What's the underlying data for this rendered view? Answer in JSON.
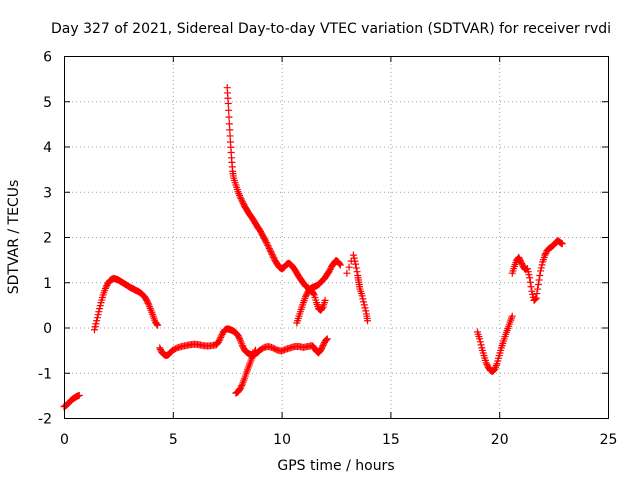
{
  "chart_data": {
    "type": "scatter",
    "title": "Day 327 of 2021, Sidereal Day-to-day VTEC variation (SDTVAR) for receiver rvdi",
    "xlabel": "GPS time / hours",
    "ylabel": "SDTVAR / TECUs",
    "xlim": [
      0,
      25
    ],
    "ylim": [
      -2,
      6
    ],
    "xticks": [
      "0",
      "5",
      "10",
      "15",
      "20",
      "25"
    ],
    "yticks": [
      "-2",
      "-1",
      "0",
      "1",
      "2",
      "3",
      "4",
      "5",
      "6"
    ],
    "grid": true,
    "marker": "plus",
    "color": "#ff0000",
    "series": [
      {
        "points": [
          [
            0.0,
            -1.75
          ],
          [
            0.1,
            -1.72
          ],
          [
            0.2,
            -1.68
          ],
          [
            0.3,
            -1.62
          ],
          [
            0.4,
            -1.58
          ],
          [
            0.5,
            -1.55
          ],
          [
            0.6,
            -1.52
          ],
          [
            0.7,
            -1.5
          ]
        ]
      },
      {
        "points": [
          [
            1.4,
            -0.05
          ],
          [
            1.5,
            0.15
          ],
          [
            1.6,
            0.35
          ],
          [
            1.7,
            0.55
          ],
          [
            1.8,
            0.72
          ],
          [
            1.9,
            0.86
          ],
          [
            2.0,
            0.96
          ],
          [
            2.1,
            1.03
          ],
          [
            2.2,
            1.07
          ],
          [
            2.3,
            1.08
          ],
          [
            2.4,
            1.07
          ],
          [
            2.5,
            1.05
          ],
          [
            2.6,
            1.02
          ],
          [
            2.7,
            0.99
          ],
          [
            2.8,
            0.96
          ],
          [
            2.9,
            0.93
          ],
          [
            3.0,
            0.9
          ],
          [
            3.1,
            0.87
          ],
          [
            3.2,
            0.85
          ],
          [
            3.3,
            0.82
          ],
          [
            3.4,
            0.8
          ],
          [
            3.5,
            0.77
          ],
          [
            3.6,
            0.73
          ],
          [
            3.7,
            0.68
          ],
          [
            3.8,
            0.6
          ],
          [
            3.9,
            0.5
          ],
          [
            4.0,
            0.38
          ],
          [
            4.1,
            0.25
          ],
          [
            4.2,
            0.12
          ],
          [
            4.3,
            0.05
          ]
        ]
      },
      {
        "points": [
          [
            4.4,
            -0.45
          ],
          [
            4.5,
            -0.55
          ],
          [
            4.6,
            -0.6
          ],
          [
            4.7,
            -0.62
          ],
          [
            4.8,
            -0.6
          ],
          [
            4.9,
            -0.55
          ],
          [
            5.0,
            -0.5
          ],
          [
            5.2,
            -0.45
          ],
          [
            5.4,
            -0.42
          ],
          [
            5.6,
            -0.4
          ],
          [
            5.8,
            -0.38
          ],
          [
            6.0,
            -0.37
          ],
          [
            6.2,
            -0.38
          ],
          [
            6.4,
            -0.4
          ],
          [
            6.6,
            -0.41
          ],
          [
            6.8,
            -0.4
          ],
          [
            7.0,
            -0.38
          ],
          [
            7.1,
            -0.32
          ],
          [
            7.2,
            -0.22
          ],
          [
            7.3,
            -0.12
          ],
          [
            7.4,
            -0.05
          ],
          [
            7.5,
            -0.03
          ],
          [
            7.6,
            -0.04
          ],
          [
            7.7,
            -0.06
          ],
          [
            7.8,
            -0.08
          ],
          [
            7.9,
            -0.12
          ],
          [
            8.0,
            -0.18
          ],
          [
            8.1,
            -0.28
          ],
          [
            8.2,
            -0.4
          ],
          [
            8.3,
            -0.5
          ],
          [
            8.4,
            -0.55
          ],
          [
            8.5,
            -0.58
          ],
          [
            8.6,
            -0.6
          ],
          [
            8.7,
            -0.6
          ],
          [
            8.8,
            -0.58
          ],
          [
            8.9,
            -0.55
          ],
          [
            9.0,
            -0.5
          ],
          [
            9.2,
            -0.44
          ],
          [
            9.4,
            -0.42
          ],
          [
            9.6,
            -0.45
          ],
          [
            9.8,
            -0.5
          ],
          [
            10.0,
            -0.52
          ],
          [
            10.2,
            -0.48
          ],
          [
            10.4,
            -0.45
          ],
          [
            10.6,
            -0.42
          ],
          [
            10.8,
            -0.42
          ],
          [
            11.0,
            -0.44
          ],
          [
            11.2,
            -0.42
          ],
          [
            11.4,
            -0.4
          ],
          [
            11.5,
            -0.45
          ],
          [
            11.6,
            -0.52
          ],
          [
            11.7,
            -0.56
          ],
          [
            11.8,
            -0.5
          ],
          [
            11.9,
            -0.4
          ],
          [
            12.0,
            -0.3
          ],
          [
            12.1,
            -0.25
          ]
        ]
      },
      {
        "points": [
          [
            7.5,
            5.3
          ],
          [
            7.55,
            4.95
          ],
          [
            7.6,
            4.5
          ],
          [
            7.65,
            4.1
          ],
          [
            7.7,
            3.75
          ],
          [
            7.75,
            3.45
          ],
          [
            7.8,
            3.3
          ],
          [
            7.9,
            3.15
          ],
          [
            8.0,
            3.0
          ],
          [
            8.1,
            2.88
          ],
          [
            8.2,
            2.78
          ],
          [
            8.3,
            2.68
          ],
          [
            8.4,
            2.6
          ],
          [
            8.5,
            2.52
          ],
          [
            8.6,
            2.45
          ],
          [
            8.7,
            2.38
          ],
          [
            8.8,
            2.3
          ],
          [
            8.9,
            2.22
          ],
          [
            9.0,
            2.15
          ],
          [
            9.1,
            2.06
          ],
          [
            9.2,
            1.97
          ],
          [
            9.3,
            1.88
          ],
          [
            9.4,
            1.78
          ],
          [
            9.5,
            1.68
          ],
          [
            9.6,
            1.58
          ],
          [
            9.7,
            1.48
          ],
          [
            9.8,
            1.4
          ],
          [
            9.9,
            1.33
          ],
          [
            10.0,
            1.3
          ],
          [
            10.1,
            1.32
          ],
          [
            10.2,
            1.38
          ],
          [
            10.3,
            1.42
          ],
          [
            10.4,
            1.4
          ],
          [
            10.5,
            1.35
          ],
          [
            10.6,
            1.28
          ],
          [
            10.7,
            1.2
          ],
          [
            10.8,
            1.12
          ],
          [
            10.9,
            1.05
          ],
          [
            11.0,
            0.98
          ],
          [
            11.1,
            0.92
          ],
          [
            11.2,
            0.88
          ],
          [
            11.3,
            0.84
          ],
          [
            11.4,
            0.8
          ],
          [
            11.5,
            0.72
          ],
          [
            11.6,
            0.55
          ],
          [
            11.7,
            0.42
          ],
          [
            11.8,
            0.38
          ],
          [
            11.9,
            0.45
          ],
          [
            12.0,
            0.6
          ]
        ]
      },
      {
        "points": [
          [
            7.9,
            -1.45
          ],
          [
            8.0,
            -1.42
          ],
          [
            8.1,
            -1.35
          ],
          [
            8.2,
            -1.25
          ],
          [
            8.3,
            -1.12
          ],
          [
            8.4,
            -0.98
          ],
          [
            8.5,
            -0.85
          ],
          [
            8.6,
            -0.72
          ],
          [
            8.7,
            -0.6
          ],
          [
            8.8,
            -0.5
          ]
        ]
      },
      {
        "points": [
          [
            10.7,
            0.1
          ],
          [
            10.8,
            0.25
          ],
          [
            10.9,
            0.4
          ],
          [
            11.0,
            0.55
          ],
          [
            11.1,
            0.68
          ],
          [
            11.2,
            0.78
          ],
          [
            11.3,
            0.85
          ],
          [
            11.4,
            0.88
          ],
          [
            11.5,
            0.9
          ],
          [
            11.6,
            0.92
          ],
          [
            11.7,
            0.95
          ],
          [
            11.8,
            1.0
          ],
          [
            11.9,
            1.05
          ],
          [
            12.0,
            1.1
          ],
          [
            12.1,
            1.18
          ],
          [
            12.2,
            1.25
          ],
          [
            12.3,
            1.35
          ],
          [
            12.4,
            1.42
          ],
          [
            12.5,
            1.48
          ],
          [
            12.6,
            1.45
          ],
          [
            12.7,
            1.38
          ]
        ]
      },
      {
        "points": [
          [
            13.0,
            1.2
          ],
          [
            13.3,
            1.6
          ],
          [
            13.4,
            1.4
          ],
          [
            13.5,
            1.15
          ],
          [
            13.55,
            1.0
          ],
          [
            13.6,
            0.85
          ],
          [
            13.7,
            0.7
          ],
          [
            13.8,
            0.5
          ],
          [
            13.9,
            0.3
          ],
          [
            13.95,
            0.15
          ]
        ]
      },
      {
        "points": [
          [
            19.0,
            -0.1
          ],
          [
            19.1,
            -0.25
          ],
          [
            19.2,
            -0.45
          ],
          [
            19.3,
            -0.62
          ],
          [
            19.4,
            -0.78
          ],
          [
            19.5,
            -0.88
          ],
          [
            19.6,
            -0.95
          ],
          [
            19.7,
            -0.97
          ],
          [
            19.8,
            -0.92
          ],
          [
            19.9,
            -0.8
          ],
          [
            20.0,
            -0.62
          ],
          [
            20.1,
            -0.45
          ],
          [
            20.2,
            -0.3
          ],
          [
            20.3,
            -0.15
          ],
          [
            20.4,
            -0.02
          ],
          [
            20.5,
            0.12
          ],
          [
            20.6,
            0.25
          ]
        ]
      },
      {
        "points": [
          [
            20.6,
            1.2
          ],
          [
            20.7,
            1.35
          ],
          [
            20.8,
            1.48
          ],
          [
            20.9,
            1.55
          ],
          [
            21.0,
            1.45
          ],
          [
            21.1,
            1.35
          ],
          [
            21.2,
            1.28
          ],
          [
            21.3,
            1.3
          ],
          [
            21.4,
            1.1
          ],
          [
            21.5,
            0.8
          ],
          [
            21.6,
            0.6
          ],
          [
            21.7,
            0.65
          ],
          [
            21.8,
            0.95
          ],
          [
            21.9,
            1.25
          ],
          [
            22.0,
            1.45
          ],
          [
            22.1,
            1.6
          ],
          [
            22.2,
            1.7
          ],
          [
            22.3,
            1.75
          ],
          [
            22.4,
            1.78
          ],
          [
            22.5,
            1.82
          ],
          [
            22.6,
            1.88
          ],
          [
            22.7,
            1.92
          ],
          [
            22.8,
            1.88
          ],
          [
            22.9,
            1.85
          ]
        ]
      }
    ]
  }
}
